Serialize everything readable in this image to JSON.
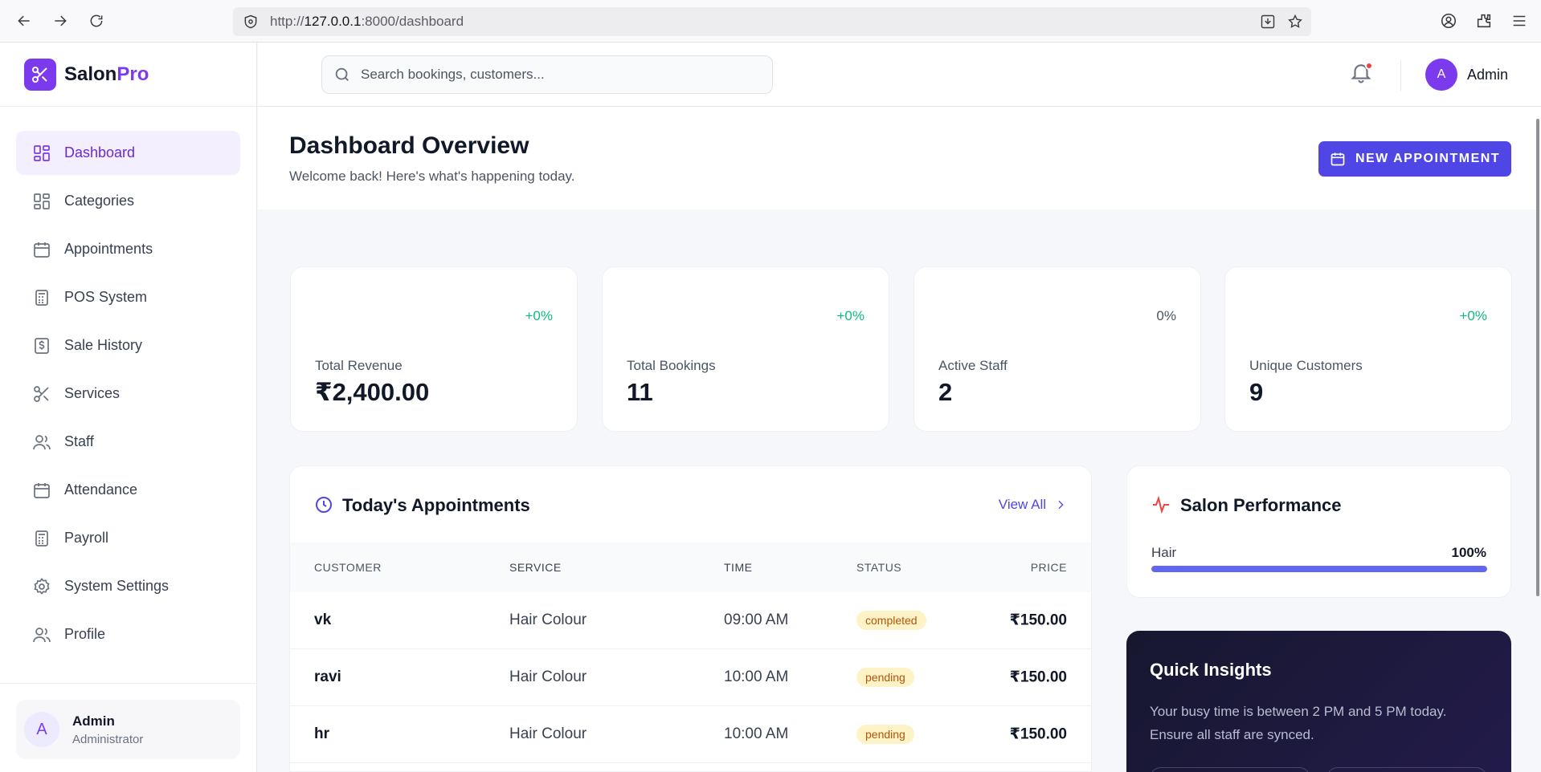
{
  "browser": {
    "url_prefix": "http://",
    "url_host": "127.0.0.1",
    "url_rest": ":8000/dashboard"
  },
  "brand": {
    "name_part1": "Salon",
    "name_part2": "Pro"
  },
  "sidebar": {
    "items": [
      {
        "label": "Dashboard",
        "icon": "grid-icon",
        "active": true
      },
      {
        "label": "Categories",
        "icon": "grid-icon"
      },
      {
        "label": "Appointments",
        "icon": "calendar-icon"
      },
      {
        "label": "POS System",
        "icon": "calculator-icon"
      },
      {
        "label": "Sale History",
        "icon": "receipt-icon"
      },
      {
        "label": "Services",
        "icon": "scissors-icon"
      },
      {
        "label": "Staff",
        "icon": "users-icon"
      },
      {
        "label": "Attendance",
        "icon": "calendar-icon"
      },
      {
        "label": "Payroll",
        "icon": "calculator-icon"
      },
      {
        "label": "System Settings",
        "icon": "gear-icon"
      },
      {
        "label": "Profile",
        "icon": "users-icon"
      }
    ],
    "user": {
      "initial": "A",
      "name": "Admin",
      "role": "Administrator"
    }
  },
  "topbar": {
    "search_placeholder": "Search bookings, customers...",
    "user_initial": "A",
    "user_name": "Admin"
  },
  "header": {
    "title": "Dashboard Overview",
    "subtitle": "Welcome back! Here's what's happening today.",
    "new_button": "NEW APPOINTMENT"
  },
  "stats": [
    {
      "label": "Total Revenue",
      "value": "₹2,400.00",
      "delta": "+0%"
    },
    {
      "label": "Total Bookings",
      "value": "11",
      "delta": "+0%"
    },
    {
      "label": "Active Staff",
      "value": "2",
      "delta": "0%"
    },
    {
      "label": "Unique Customers",
      "value": "9",
      "delta": "+0%"
    }
  ],
  "appointments": {
    "title": "Today's Appointments",
    "view_all": "View All",
    "columns": {
      "customer": "CUSTOMER",
      "service": "SERVICE",
      "time": "TIME",
      "status": "STATUS",
      "price": "PRICE"
    },
    "rows": [
      {
        "customer": "vk",
        "service": "Hair Colour",
        "time": "09:00 AM",
        "status": "completed",
        "price": "₹150.00"
      },
      {
        "customer": "ravi",
        "service": "Hair Colour",
        "time": "10:00 AM",
        "status": "pending",
        "price": "₹150.00"
      },
      {
        "customer": "hr",
        "service": "Hair Colour",
        "time": "10:00 AM",
        "status": "pending",
        "price": "₹150.00"
      }
    ]
  },
  "performance": {
    "title": "Salon Performance",
    "label": "Hair",
    "value_text": "100%",
    "fraction": 1.0
  },
  "insights": {
    "title": "Quick Insights",
    "text": "Your busy time is between 2 PM and 5 PM today. Ensure all staff are synced."
  },
  "colors": {
    "accent": "#4f46e5",
    "brand": "#7c3aed",
    "success": "#10b981"
  }
}
